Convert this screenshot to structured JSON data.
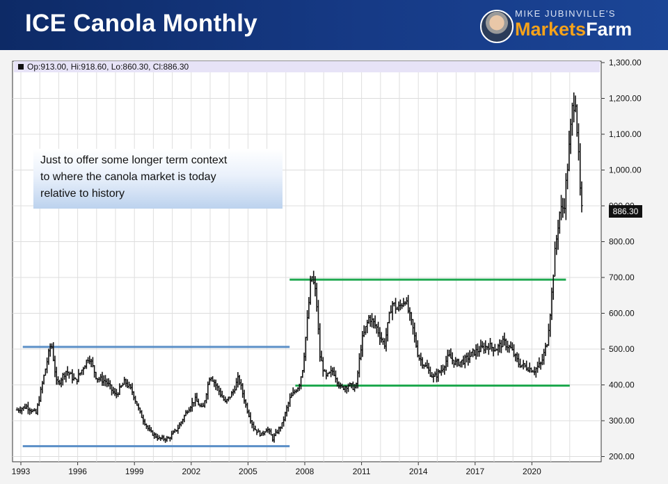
{
  "header": {
    "title": "ICE Canola Monthly",
    "brand_top": "MIKE JUBINVILLE'S",
    "brand_part1": "Markets",
    "brand_part2": "Farm"
  },
  "ohlc_readout": "Op:913.00, Hi:918.60, Lo:860.30, Cl:886.30",
  "annotation": {
    "line1": "Just to offer some longer term context",
    "line2": "to where the canola market is today",
    "line3": "relative to history"
  },
  "last_price_label": "886.30",
  "chart_data": {
    "type": "ohlc",
    "title": "ICE Canola Monthly",
    "xlabel": "",
    "ylabel": "",
    "ylim": [
      200,
      1300
    ],
    "xlim": [
      1992.8,
      2022.8
    ],
    "grid": true,
    "y_ticks": [
      {
        "v": 200,
        "label": "200.00"
      },
      {
        "v": 300,
        "label": "300.00"
      },
      {
        "v": 400,
        "label": "400.00"
      },
      {
        "v": 500,
        "label": "500.00"
      },
      {
        "v": 600,
        "label": "600.00"
      },
      {
        "v": 700,
        "label": "700.00"
      },
      {
        "v": 800,
        "label": "800.00"
      },
      {
        "v": 900,
        "label": "900.00"
      },
      {
        "v": 1000,
        "label": "1,000.00"
      },
      {
        "v": 1100,
        "label": "1,100.00"
      },
      {
        "v": 1200,
        "label": "1,200.00"
      },
      {
        "v": 1300,
        "label": "1,300.00"
      }
    ],
    "x_ticks": [
      {
        "v": 1993,
        "label": "1993"
      },
      {
        "v": 1996,
        "label": "1996"
      },
      {
        "v": 1999,
        "label": "1999"
      },
      {
        "v": 2002,
        "label": "2002"
      },
      {
        "v": 2005,
        "label": "2005"
      },
      {
        "v": 2008,
        "label": "2008"
      },
      {
        "v": 2011,
        "label": "2011"
      },
      {
        "v": 2014,
        "label": "2014"
      },
      {
        "v": 2017,
        "label": "2017"
      },
      {
        "v": 2020,
        "label": "2020"
      }
    ],
    "price_path": [
      [
        1992.8,
        330
      ],
      [
        1993.3,
        340
      ],
      [
        1993.8,
        320
      ],
      [
        1994.2,
        420
      ],
      [
        1994.6,
        520
      ],
      [
        1994.9,
        400
      ],
      [
        1995.4,
        440
      ],
      [
        1995.9,
        410
      ],
      [
        1996.3,
        450
      ],
      [
        1996.6,
        480
      ],
      [
        1997.0,
        420
      ],
      [
        1997.5,
        410
      ],
      [
        1998.0,
        370
      ],
      [
        1998.5,
        410
      ],
      [
        1998.9,
        380
      ],
      [
        1999.3,
        320
      ],
      [
        1999.8,
        270
      ],
      [
        2000.3,
        250
      ],
      [
        2000.8,
        250
      ],
      [
        2001.3,
        280
      ],
      [
        2001.8,
        330
      ],
      [
        2002.2,
        360
      ],
      [
        2002.6,
        330
      ],
      [
        2003.0,
        430
      ],
      [
        2003.3,
        400
      ],
      [
        2003.8,
        350
      ],
      [
        2004.2,
        380
      ],
      [
        2004.5,
        420
      ],
      [
        2004.9,
        340
      ],
      [
        2005.3,
        280
      ],
      [
        2005.7,
        260
      ],
      [
        2006.0,
        280
      ],
      [
        2006.3,
        250
      ],
      [
        2006.8,
        290
      ],
      [
        2007.2,
        360
      ],
      [
        2007.7,
        400
      ],
      [
        2007.9,
        450
      ],
      [
        2008.1,
        560
      ],
      [
        2008.35,
        710
      ],
      [
        2008.6,
        650
      ],
      [
        2008.8,
        480
      ],
      [
        2009.1,
        420
      ],
      [
        2009.5,
        440
      ],
      [
        2009.9,
        390
      ],
      [
        2010.3,
        400
      ],
      [
        2010.7,
        390
      ],
      [
        2011.0,
        520
      ],
      [
        2011.4,
        590
      ],
      [
        2011.8,
        560
      ],
      [
        2012.2,
        510
      ],
      [
        2012.6,
        630
      ],
      [
        2012.9,
        610
      ],
      [
        2013.3,
        640
      ],
      [
        2013.7,
        560
      ],
      [
        2014.0,
        480
      ],
      [
        2014.4,
        450
      ],
      [
        2014.8,
        420
      ],
      [
        2015.2,
        440
      ],
      [
        2015.6,
        480
      ],
      [
        2016.0,
        460
      ],
      [
        2016.5,
        470
      ],
      [
        2016.9,
        490
      ],
      [
        2017.3,
        500
      ],
      [
        2017.7,
        510
      ],
      [
        2018.1,
        500
      ],
      [
        2018.5,
        520
      ],
      [
        2018.9,
        500
      ],
      [
        2019.3,
        460
      ],
      [
        2019.7,
        450
      ],
      [
        2020.1,
        440
      ],
      [
        2020.5,
        460
      ],
      [
        2020.8,
        520
      ],
      [
        2021.0,
        620
      ],
      [
        2021.2,
        760
      ],
      [
        2021.45,
        880
      ],
      [
        2021.7,
        900
      ],
      [
        2021.95,
        1050
      ],
      [
        2022.15,
        1180
      ],
      [
        2022.3,
        1200
      ],
      [
        2022.45,
        1050
      ],
      [
        2022.6,
        886
      ]
    ],
    "horizontal_lines": [
      {
        "y": 506,
        "x_start": 1993.1,
        "x_end": 2007.2,
        "color": "#5b8fc7"
      },
      {
        "y": 229,
        "x_start": 1993.1,
        "x_end": 2007.2,
        "color": "#5b8fc7"
      },
      {
        "y": 694,
        "x_start": 2007.2,
        "x_end": 2021.8,
        "color": "#1fa84f"
      },
      {
        "y": 398,
        "x_start": 2007.5,
        "x_end": 2022.0,
        "color": "#1fa84f"
      }
    ],
    "last_price": 886.3
  }
}
